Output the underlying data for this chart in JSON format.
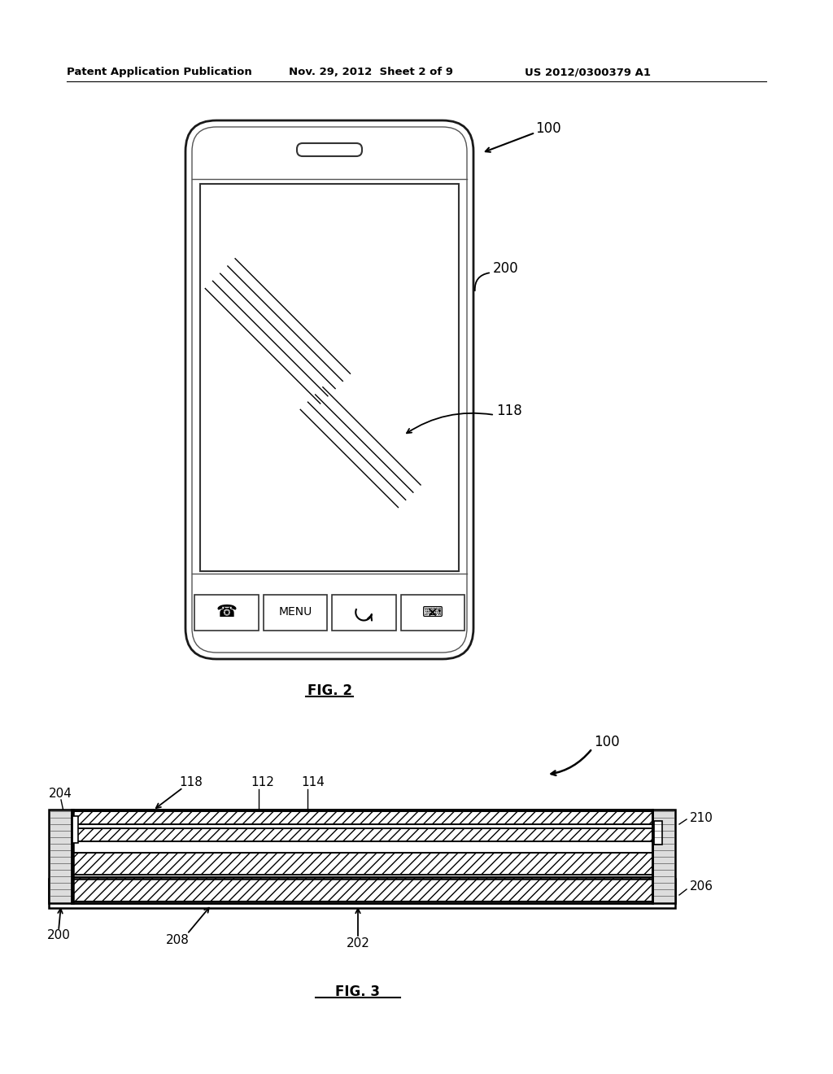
{
  "bg_color": "#ffffff",
  "header_left": "Patent Application Publication",
  "header_center": "Nov. 29, 2012  Sheet 2 of 9",
  "header_right": "US 2012/0300379 A1",
  "fig2_label": "FIG. 2",
  "fig3_label": "FIG. 3",
  "label_100_fig2": "100",
  "label_200": "200",
  "label_118_fig2": "118",
  "label_100_fig3": "100",
  "label_204": "204",
  "label_118_fig3": "118",
  "label_112": "112",
  "label_114": "114",
  "label_210": "210",
  "label_206": "206",
  "label_200_fig3": "200",
  "label_208": "208",
  "label_202": "202"
}
